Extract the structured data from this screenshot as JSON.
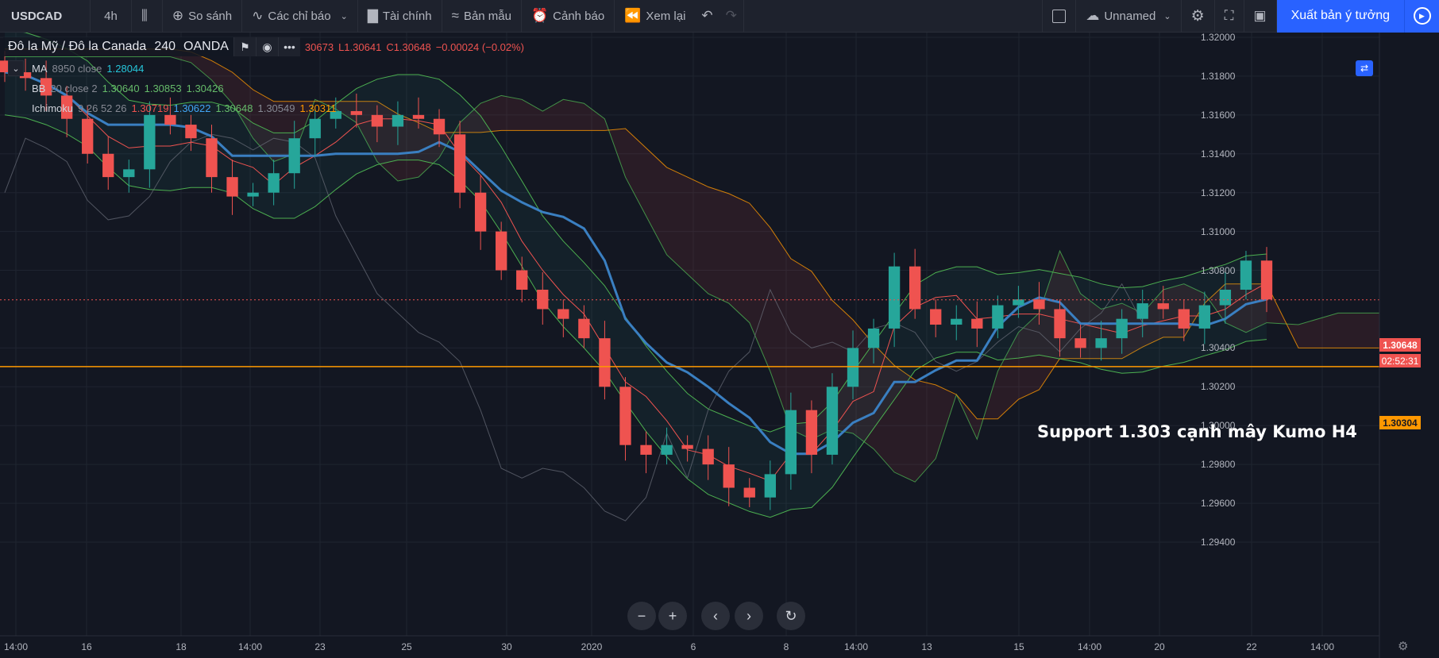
{
  "toolbar": {
    "symbol": "USDCAD",
    "interval": "4h",
    "compare": "So sánh",
    "indicators": "Các chỉ báo",
    "financials": "Tài chính",
    "templates": "Bản mẫu",
    "alerts": "Cảnh báo",
    "replay": "Xem lại",
    "layout_name": "Unnamed",
    "publish": "Xuất bản ý tưởng"
  },
  "legend": {
    "title": "Đô la Mỹ / Đô la Canada",
    "interval": "240",
    "source": "OANDA",
    "more": "•••",
    "ohlc": {
      "high_fragment": "30673",
      "low": "L1.30641",
      "close": "C1.30648",
      "change": "−0.00024 (−0.02%)"
    }
  },
  "indicators": [
    {
      "name": "MA",
      "params": "8950 close",
      "values": [
        "1.28044"
      ],
      "colors": [
        "#26c6da"
      ]
    },
    {
      "name": "BB",
      "params": "20 close 2",
      "values": [
        "1.30640",
        "1.30853",
        "1.30426"
      ],
      "colors": [
        "#66bb6a",
        "#66bb6a",
        "#66bb6a"
      ]
    },
    {
      "name": "Ichimoku",
      "params": "9 26 52 26",
      "values": [
        "1.30719",
        "1.30622",
        "1.30648",
        "1.30549",
        "1.30311"
      ],
      "colors": [
        "#ef5350",
        "#42a5f5",
        "#66bb6a",
        "#868993",
        "#ff9800"
      ]
    }
  ],
  "price_axis": [
    "1.32000",
    "1.31800",
    "1.31600",
    "1.31400",
    "1.31200",
    "1.31000",
    "1.30800",
    "1.30400",
    "1.30200",
    "1.30000",
    "1.29800",
    "1.29600",
    "1.29400"
  ],
  "price_tags": {
    "last_price": "1.30648",
    "countdown": "02:52:31",
    "support": "1.30304"
  },
  "time_axis": [
    "14:00",
    "16",
    "18",
    "14:00",
    "23",
    "25",
    "30",
    "2020",
    "6",
    "8",
    "14:00",
    "13",
    "15",
    "14:00",
    "20",
    "22",
    "14:00"
  ],
  "annotation": "Support 1.303 cạnh mây Kumo H4",
  "colors": {
    "background": "#131722",
    "candle_up": "#26a69a",
    "candle_down": "#ef5350",
    "kijun": "#3a7fc1",
    "support_line": "#ff9800",
    "accent": "#2962ff"
  },
  "chart_data": {
    "type": "candlestick",
    "title": "Đô la Mỹ / Đô la Canada",
    "ylim": [
      1.294,
      1.321
    ],
    "support_level": 1.30304,
    "last_price": 1.30648,
    "close_path": [
      1.3182,
      1.3179,
      1.317,
      1.3158,
      1.314,
      1.3128,
      1.3132,
      1.316,
      1.3155,
      1.3148,
      1.3128,
      1.3118,
      1.312,
      1.313,
      1.3148,
      1.3158,
      1.3162,
      1.316,
      1.3154,
      1.316,
      1.3158,
      1.315,
      1.312,
      1.31,
      1.308,
      1.307,
      1.306,
      1.3055,
      1.3045,
      1.302,
      1.299,
      1.2985,
      1.299,
      1.2988,
      1.298,
      1.2968,
      1.2963,
      1.2975,
      1.3008,
      1.2985,
      1.302,
      1.304,
      1.305,
      1.3082,
      1.306,
      1.3052,
      1.3055,
      1.305,
      1.3062,
      1.3065,
      1.306,
      1.3045,
      1.304,
      1.3045,
      1.3055,
      1.3063,
      1.306,
      1.305,
      1.3062,
      1.307,
      1.3085,
      1.3065
    ]
  }
}
